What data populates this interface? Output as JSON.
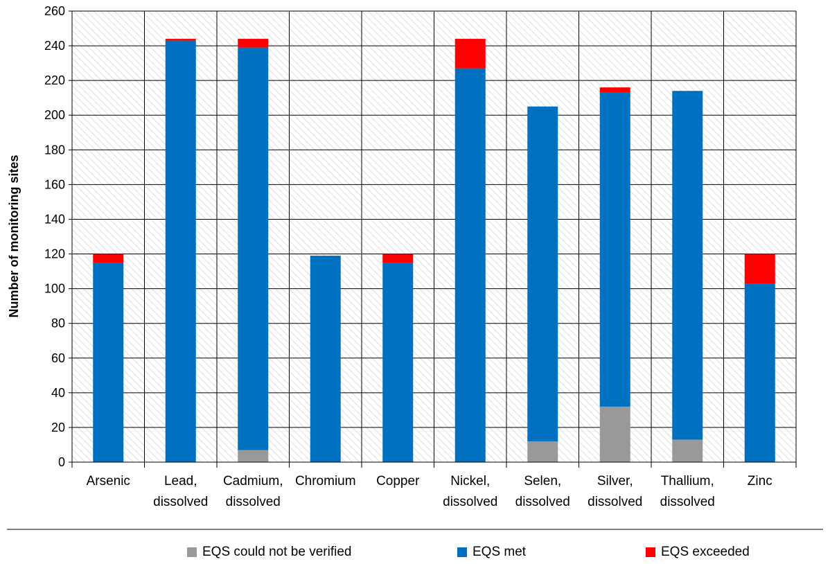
{
  "chart_data": {
    "type": "bar",
    "stacked": true,
    "categories": [
      [
        "Arsenic"
      ],
      [
        "Lead,",
        "dissolved"
      ],
      [
        "Cadmium,",
        "dissolved"
      ],
      [
        "Chromium"
      ],
      [
        "Copper"
      ],
      [
        "Nickel,",
        "dissolved"
      ],
      [
        "Selen,",
        "dissolved"
      ],
      [
        "Silver,",
        "dissolved"
      ],
      [
        "Thallium,",
        "dissolved"
      ],
      [
        "Zinc"
      ]
    ],
    "series": [
      {
        "name": "EQS could not be verified",
        "color": "#999999",
        "values": [
          0,
          0,
          7,
          0,
          0,
          0,
          12,
          32,
          13,
          0
        ]
      },
      {
        "name": "EQS met",
        "color": "#0070C0",
        "values": [
          115,
          243,
          232,
          119,
          115,
          227,
          193,
          181,
          201,
          103
        ]
      },
      {
        "name": "EQS exceeded",
        "color": "#FF0000",
        "values": [
          5,
          1,
          5,
          0,
          5,
          17,
          0,
          3,
          0,
          17
        ]
      }
    ],
    "ylabel": "Number of monitoring sites",
    "xlabel": "",
    "ylim": [
      0,
      260
    ],
    "yticks": [
      0,
      20,
      40,
      60,
      80,
      100,
      120,
      140,
      160,
      180,
      200,
      220,
      240,
      260
    ],
    "grid": true,
    "background": "hatched",
    "legend": "bottom"
  }
}
